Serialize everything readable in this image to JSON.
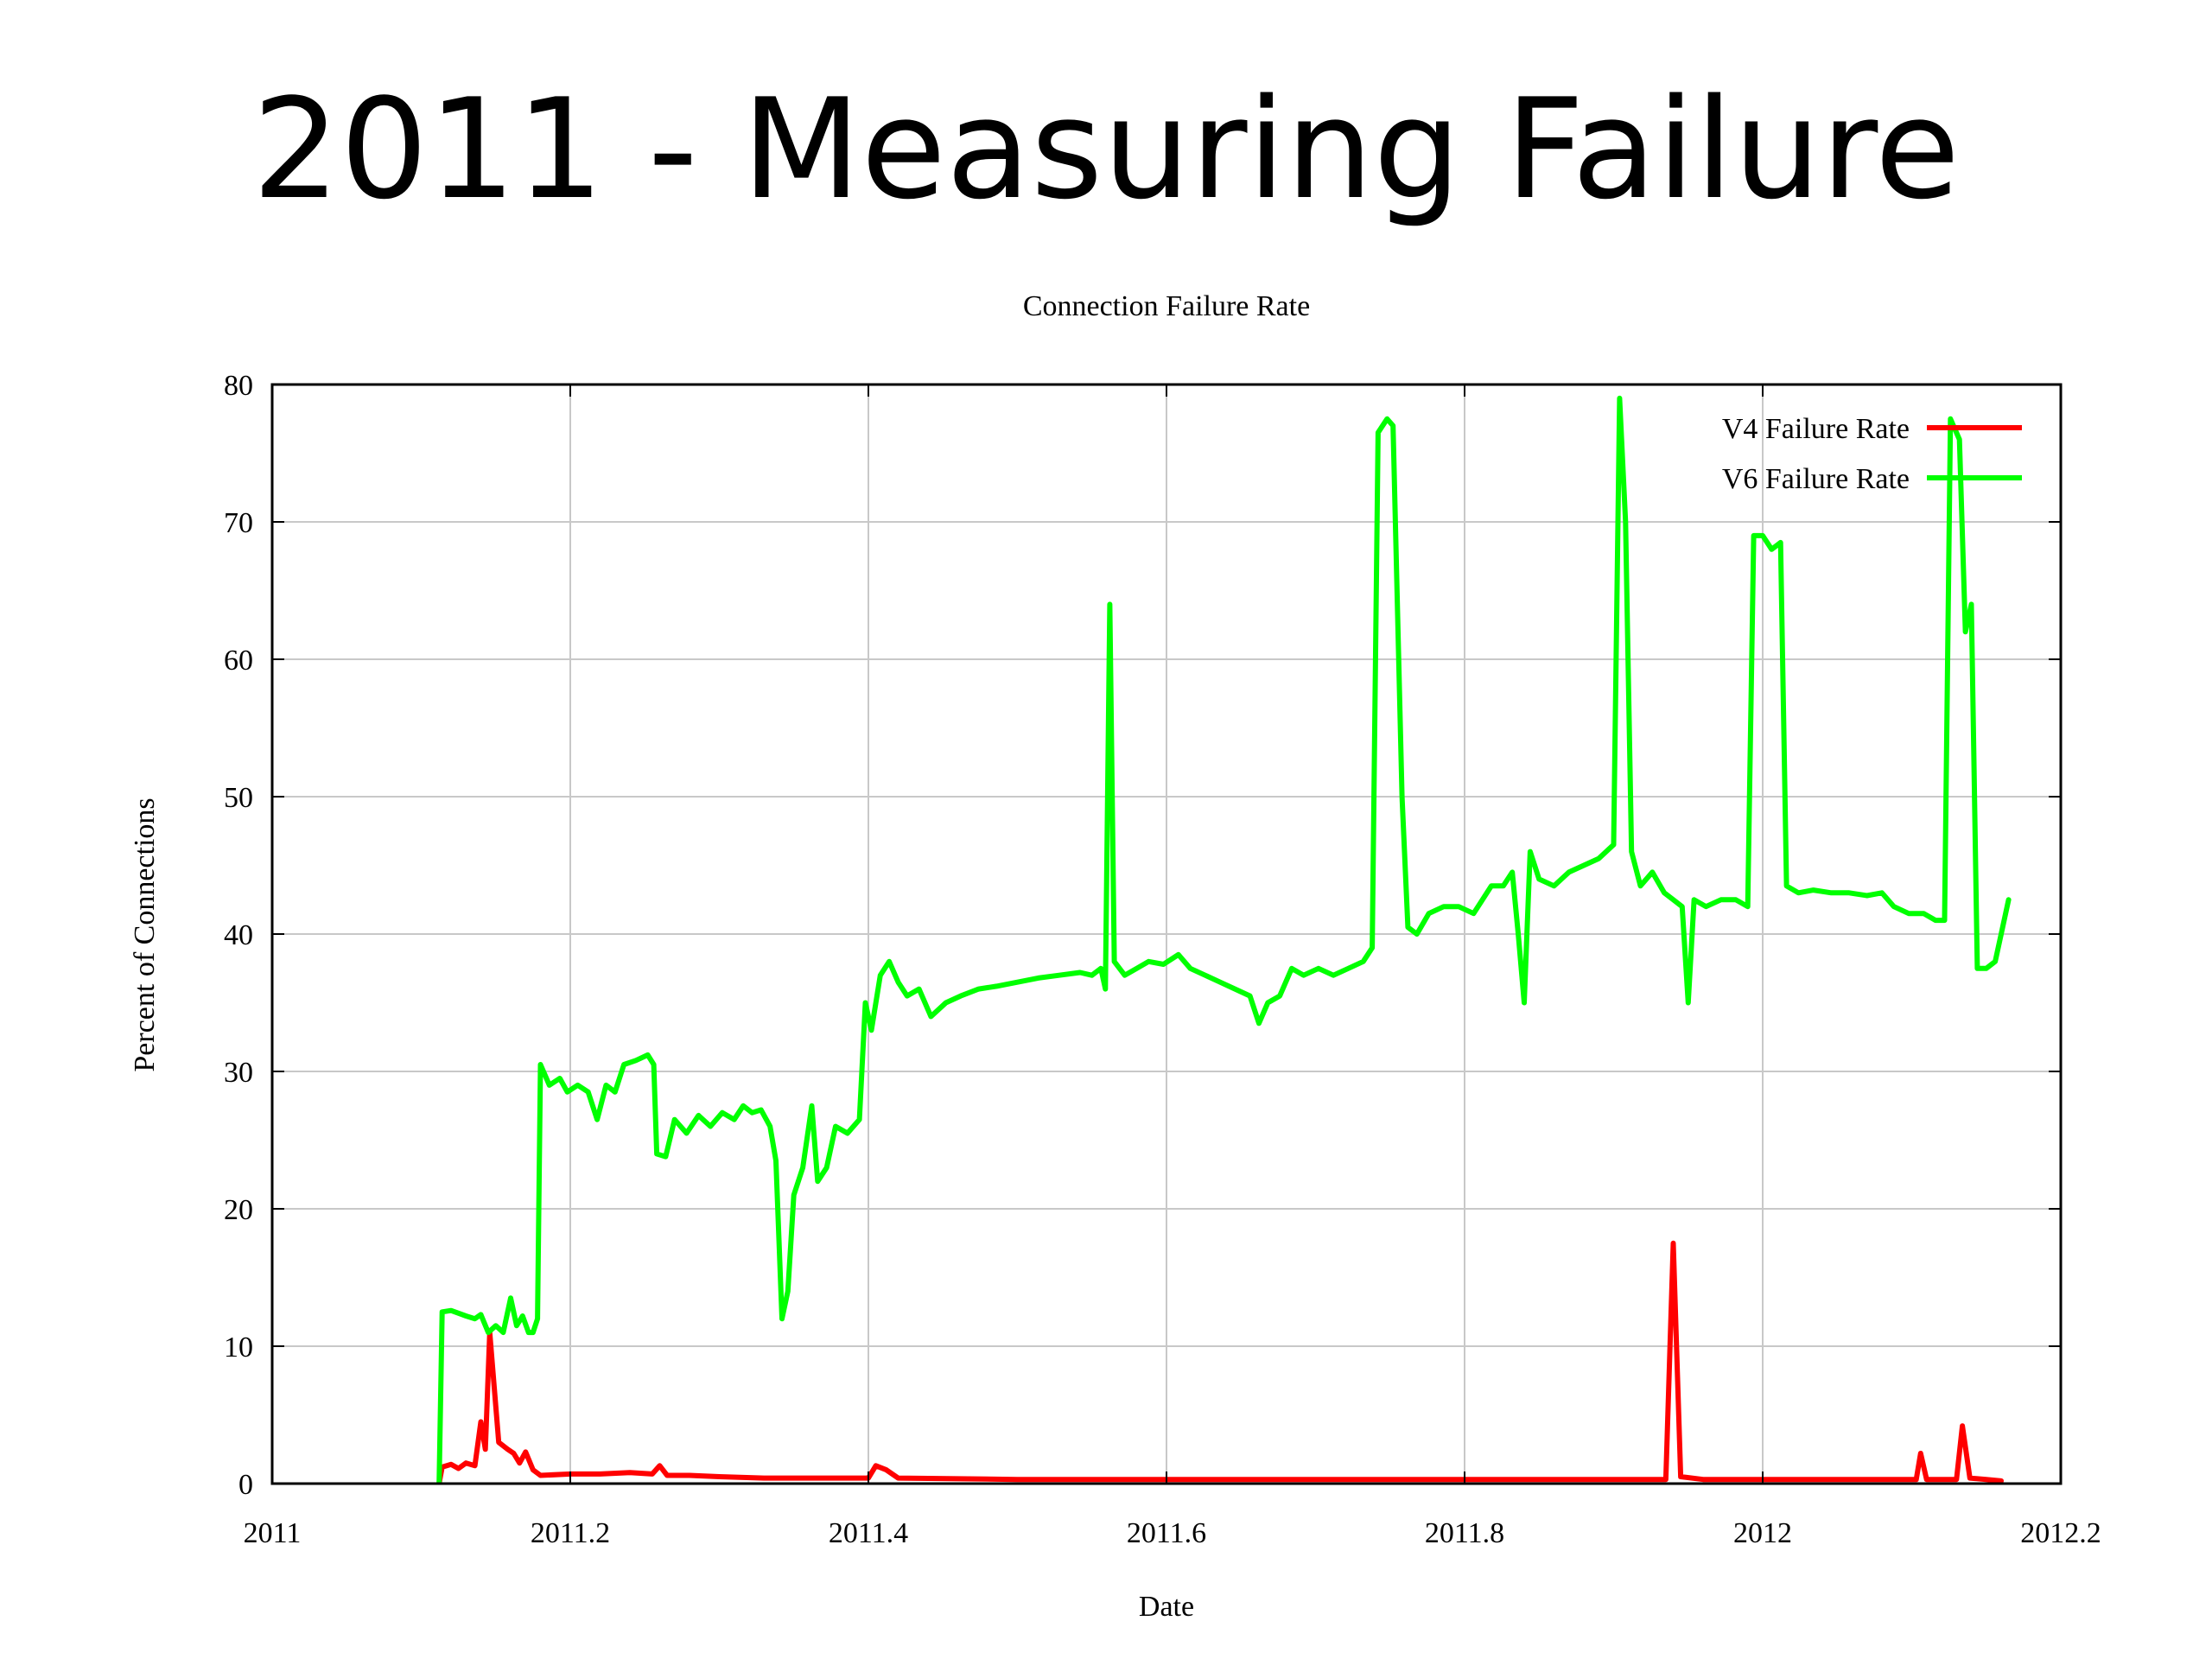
{
  "slide": {
    "title": "2011 - Measuring Failure"
  },
  "chart_data": {
    "type": "line",
    "title": "Connection Failure Rate",
    "xlabel": "Date",
    "ylabel": "Percent of Connections",
    "xlim": [
      2011,
      2012.2
    ],
    "ylim": [
      0,
      80
    ],
    "x_ticks": [
      2011,
      2011.2,
      2011.4,
      2011.6,
      2011.8,
      2012,
      2012.2
    ],
    "x_tick_labels": [
      "2011",
      "2011.2",
      "2011.4",
      "2011.6",
      "2011.8",
      "2012",
      "2012.2"
    ],
    "y_ticks": [
      0,
      10,
      20,
      30,
      40,
      50,
      60,
      70,
      80
    ],
    "y_tick_labels": [
      "0",
      "10",
      "20",
      "30",
      "40",
      "50",
      "60",
      "70",
      "80"
    ],
    "grid": true,
    "legend_position": "top-right",
    "series": [
      {
        "name": "V4 Failure Rate",
        "color": "#ff0000",
        "points": [
          [
            2011.112,
            0.0
          ],
          [
            2011.114,
            1.2
          ],
          [
            2011.12,
            1.4
          ],
          [
            2011.125,
            1.1
          ],
          [
            2011.13,
            1.5
          ],
          [
            2011.136,
            1.3
          ],
          [
            2011.14,
            4.5
          ],
          [
            2011.143,
            2.5
          ],
          [
            2011.146,
            11.0
          ],
          [
            2011.149,
            7.0
          ],
          [
            2011.152,
            3.0
          ],
          [
            2011.158,
            2.5
          ],
          [
            2011.162,
            2.2
          ],
          [
            2011.166,
            1.5
          ],
          [
            2011.17,
            2.3
          ],
          [
            2011.175,
            1.0
          ],
          [
            2011.18,
            0.6
          ],
          [
            2011.2,
            0.7
          ],
          [
            2011.22,
            0.7
          ],
          [
            2011.24,
            0.8
          ],
          [
            2011.255,
            0.7
          ],
          [
            2011.26,
            1.3
          ],
          [
            2011.265,
            0.6
          ],
          [
            2011.28,
            0.6
          ],
          [
            2011.3,
            0.5
          ],
          [
            2011.33,
            0.4
          ],
          [
            2011.36,
            0.4
          ],
          [
            2011.4,
            0.4
          ],
          [
            2011.405,
            1.3
          ],
          [
            2011.412,
            1.0
          ],
          [
            2011.42,
            0.4
          ],
          [
            2011.5,
            0.3
          ],
          [
            2011.6,
            0.3
          ],
          [
            2011.7,
            0.3
          ],
          [
            2011.8,
            0.3
          ],
          [
            2011.9,
            0.3
          ],
          [
            2011.935,
            0.3
          ],
          [
            2011.94,
            17.5
          ],
          [
            2011.945,
            0.5
          ],
          [
            2011.96,
            0.3
          ],
          [
            2012.0,
            0.3
          ],
          [
            2012.08,
            0.3
          ],
          [
            2012.103,
            0.3
          ],
          [
            2012.106,
            2.2
          ],
          [
            2012.11,
            0.3
          ],
          [
            2012.13,
            0.3
          ],
          [
            2012.134,
            4.2
          ],
          [
            2012.139,
            0.4
          ],
          [
            2012.15,
            0.3
          ],
          [
            2012.16,
            0.2
          ]
        ]
      },
      {
        "name": "V6 Failure Rate",
        "color": "#00ff00",
        "points": [
          [
            2011.112,
            0.0
          ],
          [
            2011.114,
            12.5
          ],
          [
            2011.12,
            12.6
          ],
          [
            2011.13,
            12.2
          ],
          [
            2011.136,
            12.0
          ],
          [
            2011.14,
            12.3
          ],
          [
            2011.145,
            11.0
          ],
          [
            2011.15,
            11.5
          ],
          [
            2011.155,
            11.0
          ],
          [
            2011.16,
            13.5
          ],
          [
            2011.164,
            11.5
          ],
          [
            2011.168,
            12.2
          ],
          [
            2011.172,
            11.0
          ],
          [
            2011.175,
            11.0
          ],
          [
            2011.178,
            12.0
          ],
          [
            2011.18,
            30.5
          ],
          [
            2011.186,
            29.0
          ],
          [
            2011.193,
            29.5
          ],
          [
            2011.198,
            28.5
          ],
          [
            2011.205,
            29.0
          ],
          [
            2011.212,
            28.5
          ],
          [
            2011.218,
            26.5
          ],
          [
            2011.224,
            29.0
          ],
          [
            2011.23,
            28.5
          ],
          [
            2011.236,
            30.5
          ],
          [
            2011.244,
            30.8
          ],
          [
            2011.252,
            31.2
          ],
          [
            2011.256,
            30.5
          ],
          [
            2011.258,
            24.0
          ],
          [
            2011.264,
            23.8
          ],
          [
            2011.27,
            26.5
          ],
          [
            2011.278,
            25.5
          ],
          [
            2011.286,
            26.8
          ],
          [
            2011.294,
            26.0
          ],
          [
            2011.302,
            27.0
          ],
          [
            2011.31,
            26.5
          ],
          [
            2011.316,
            27.5
          ],
          [
            2011.322,
            27.0
          ],
          [
            2011.328,
            27.2
          ],
          [
            2011.334,
            26.0
          ],
          [
            2011.338,
            23.5
          ],
          [
            2011.342,
            12.0
          ],
          [
            2011.346,
            14.0
          ],
          [
            2011.35,
            21.0
          ],
          [
            2011.356,
            23.0
          ],
          [
            2011.362,
            27.5
          ],
          [
            2011.366,
            22.0
          ],
          [
            2011.372,
            23.0
          ],
          [
            2011.378,
            26.0
          ],
          [
            2011.386,
            25.5
          ],
          [
            2011.394,
            26.5
          ],
          [
            2011.398,
            35.0
          ],
          [
            2011.402,
            33.0
          ],
          [
            2011.408,
            37.0
          ],
          [
            2011.414,
            38.0
          ],
          [
            2011.42,
            36.5
          ],
          [
            2011.426,
            35.5
          ],
          [
            2011.434,
            36.0
          ],
          [
            2011.442,
            34.0
          ],
          [
            2011.452,
            35.0
          ],
          [
            2011.462,
            35.5
          ],
          [
            2011.474,
            36.0
          ],
          [
            2011.486,
            36.2
          ],
          [
            2011.5,
            36.5
          ],
          [
            2011.514,
            36.8
          ],
          [
            2011.528,
            37.0
          ],
          [
            2011.542,
            37.2
          ],
          [
            2011.55,
            37.0
          ],
          [
            2011.556,
            37.5
          ],
          [
            2011.559,
            36.0
          ],
          [
            2011.562,
            64.0
          ],
          [
            2011.565,
            38.0
          ],
          [
            2011.572,
            37.0
          ],
          [
            2011.58,
            37.5
          ],
          [
            2011.588,
            38.0
          ],
          [
            2011.598,
            37.8
          ],
          [
            2011.608,
            38.5
          ],
          [
            2011.616,
            37.5
          ],
          [
            2011.626,
            37.0
          ],
          [
            2011.636,
            36.5
          ],
          [
            2011.646,
            36.0
          ],
          [
            2011.656,
            35.5
          ],
          [
            2011.662,
            33.5
          ],
          [
            2011.668,
            35.0
          ],
          [
            2011.676,
            35.5
          ],
          [
            2011.684,
            37.5
          ],
          [
            2011.692,
            37.0
          ],
          [
            2011.702,
            37.5
          ],
          [
            2011.712,
            37.0
          ],
          [
            2011.722,
            37.5
          ],
          [
            2011.732,
            38.0
          ],
          [
            2011.738,
            39.0
          ],
          [
            2011.742,
            76.5
          ],
          [
            2011.748,
            77.5
          ],
          [
            2011.752,
            77.0
          ],
          [
            2011.758,
            50.0
          ],
          [
            2011.762,
            40.5
          ],
          [
            2011.768,
            40.0
          ],
          [
            2011.776,
            41.5
          ],
          [
            2011.786,
            42.0
          ],
          [
            2011.796,
            42.0
          ],
          [
            2011.806,
            41.5
          ],
          [
            2011.812,
            42.5
          ],
          [
            2011.818,
            43.5
          ],
          [
            2011.826,
            43.5
          ],
          [
            2011.832,
            44.5
          ],
          [
            2011.836,
            40.0
          ],
          [
            2011.84,
            35.0
          ],
          [
            2011.844,
            46.0
          ],
          [
            2011.85,
            44.0
          ],
          [
            2011.86,
            43.5
          ],
          [
            2011.87,
            44.5
          ],
          [
            2011.88,
            45.0
          ],
          [
            2011.89,
            45.5
          ],
          [
            2011.9,
            46.5
          ],
          [
            2011.904,
            79.0
          ],
          [
            2011.908,
            70.0
          ],
          [
            2011.912,
            46.0
          ],
          [
            2011.918,
            43.5
          ],
          [
            2011.926,
            44.5
          ],
          [
            2011.934,
            43.0
          ],
          [
            2011.94,
            42.5
          ],
          [
            2011.946,
            42.0
          ],
          [
            2011.95,
            35.0
          ],
          [
            2011.954,
            42.5
          ],
          [
            2011.962,
            42.0
          ],
          [
            2011.972,
            42.5
          ],
          [
            2011.982,
            42.5
          ],
          [
            2011.99,
            42.0
          ],
          [
            2011.994,
            69.0
          ],
          [
            2012.0,
            69.0
          ],
          [
            2012.006,
            68.0
          ],
          [
            2012.012,
            68.5
          ],
          [
            2012.016,
            43.5
          ],
          [
            2012.024,
            43.0
          ],
          [
            2012.034,
            43.2
          ],
          [
            2012.046,
            43.0
          ],
          [
            2012.058,
            43.0
          ],
          [
            2012.07,
            42.8
          ],
          [
            2012.08,
            43.0
          ],
          [
            2012.088,
            42.0
          ],
          [
            2012.098,
            41.5
          ],
          [
            2012.108,
            41.5
          ],
          [
            2012.116,
            41.0
          ],
          [
            2012.122,
            41.0
          ],
          [
            2012.126,
            77.5
          ],
          [
            2012.132,
            76.0
          ],
          [
            2012.136,
            62.0
          ],
          [
            2012.14,
            64.0
          ],
          [
            2012.144,
            37.5
          ],
          [
            2012.15,
            37.5
          ],
          [
            2012.156,
            38.0
          ],
          [
            2012.16,
            40.0
          ],
          [
            2012.165,
            42.5
          ]
        ]
      }
    ]
  }
}
